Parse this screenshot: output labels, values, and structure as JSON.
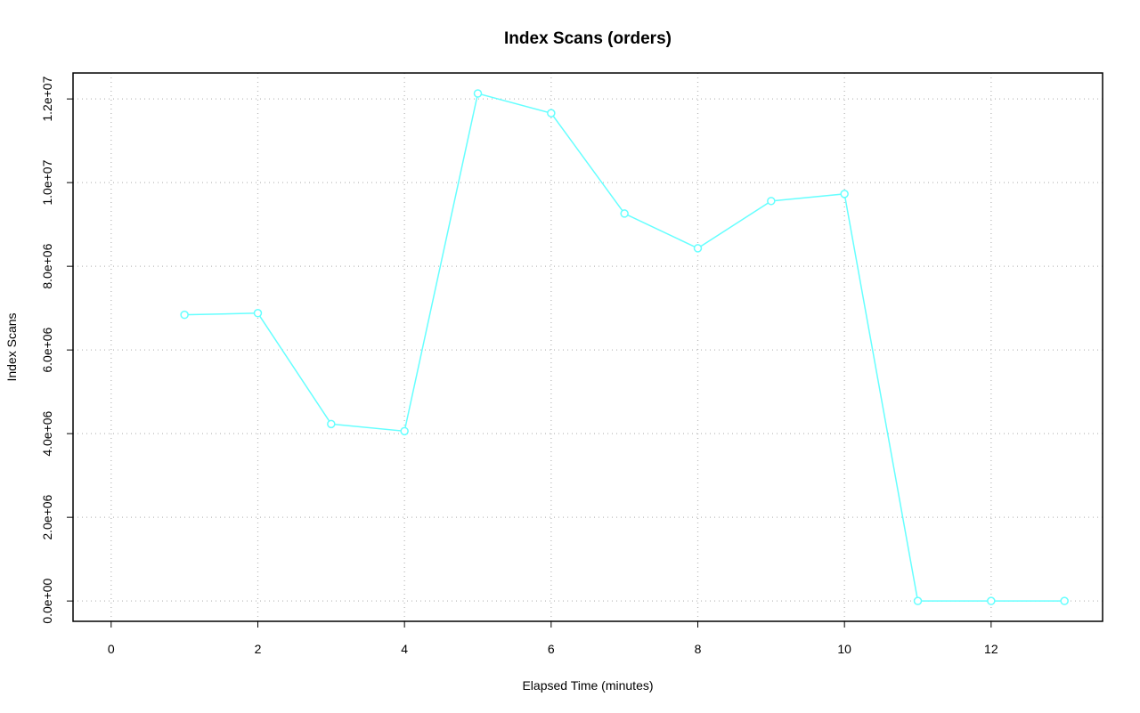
{
  "chart_data": {
    "type": "line",
    "title": "Index Scans (orders)",
    "xlabel": "Elapsed Time (minutes)",
    "ylabel": "Index Scans",
    "x": [
      1,
      2,
      3,
      4,
      5,
      6,
      7,
      8,
      9,
      10,
      11,
      12,
      13
    ],
    "series": [
      {
        "color": "#66ffff",
        "values": [
          6840000,
          6880000,
          4230000,
          4060000,
          12130000,
          11660000,
          9260000,
          8430000,
          9560000,
          9730000,
          0,
          0,
          0
        ]
      }
    ],
    "xlim": [
      -0.52,
      13.52
    ],
    "xticks": [
      0,
      2,
      4,
      6,
      8,
      10,
      12
    ],
    "ylim": [
      -486000,
      12620000
    ],
    "yticks": [
      {
        "value": 0,
        "label": "0.0e+00"
      },
      {
        "value": 2000000,
        "label": "2.0e+06"
      },
      {
        "value": 4000000,
        "label": "4.0e+06"
      },
      {
        "value": 6000000,
        "label": "6.0e+06"
      },
      {
        "value": 8000000,
        "label": "8.0e+06"
      },
      {
        "value": 10000000,
        "label": "1.0e+07"
      },
      {
        "value": 12000000,
        "label": "1.2e+07"
      }
    ],
    "grid": true
  }
}
